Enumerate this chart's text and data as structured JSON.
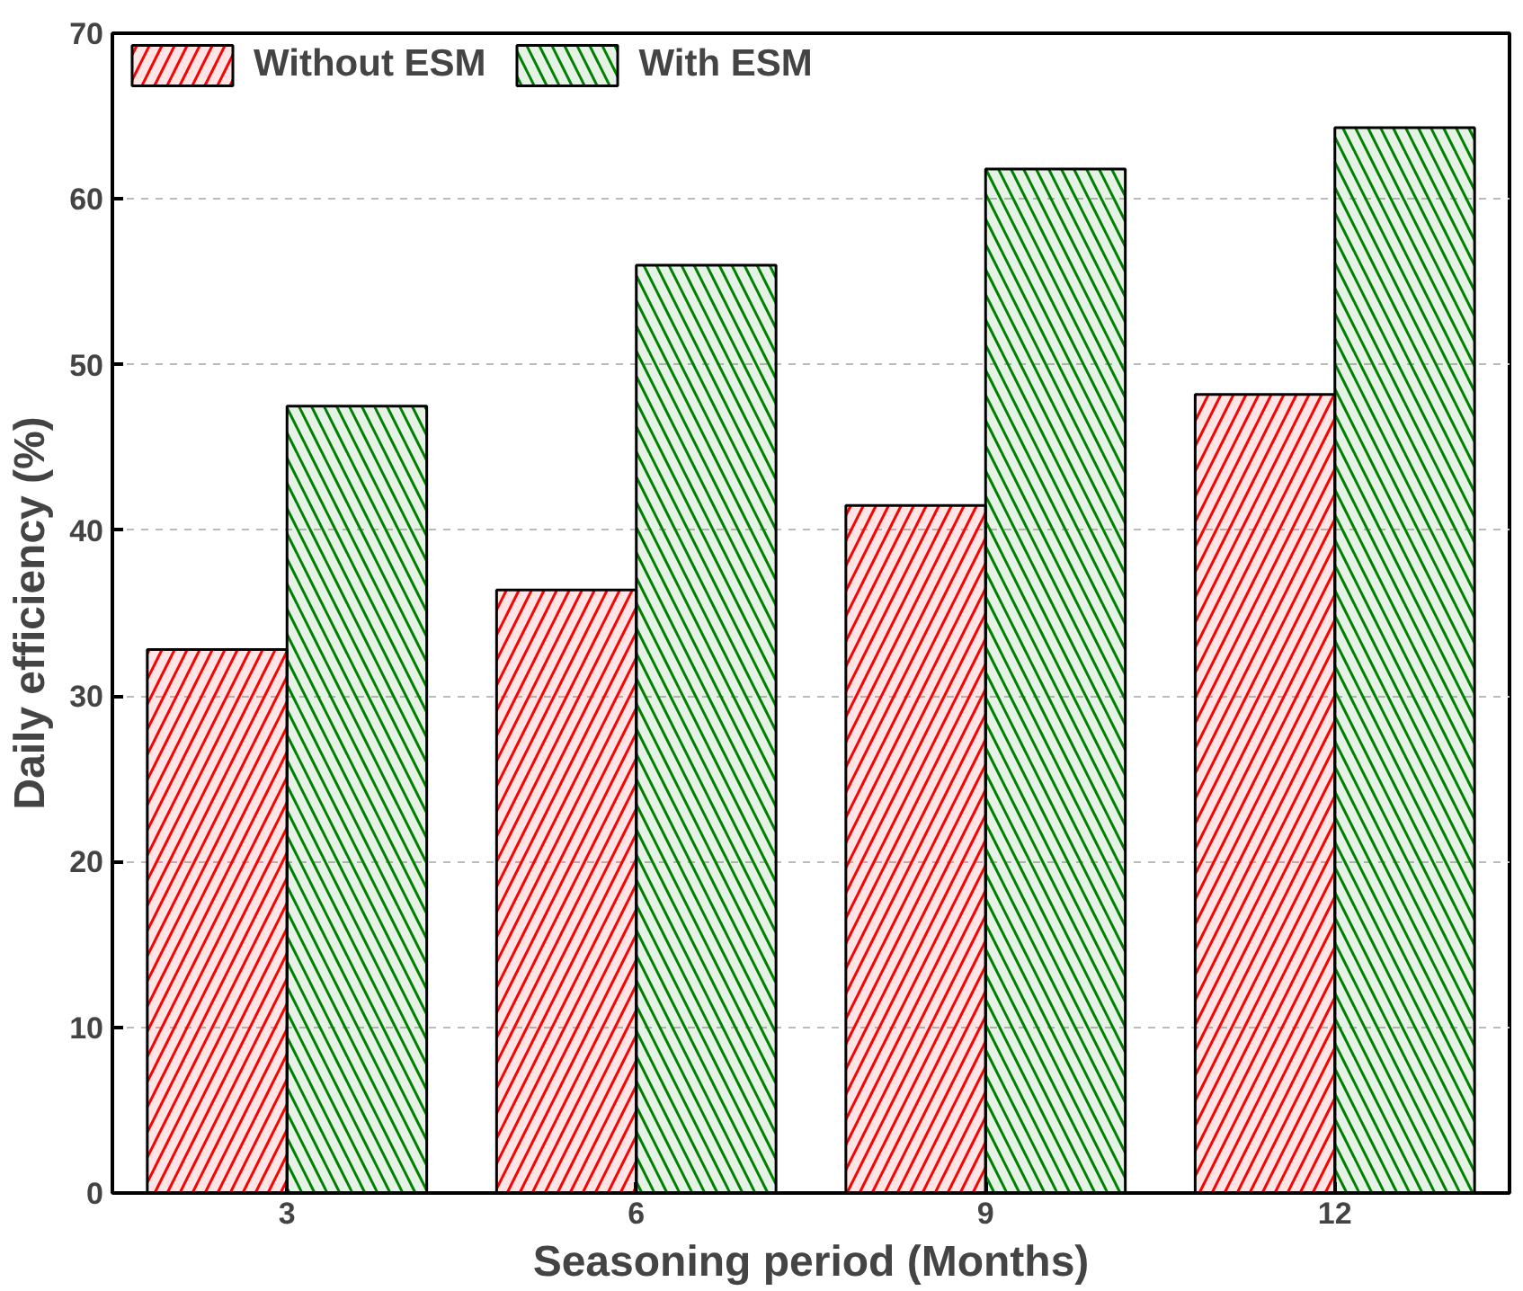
{
  "chart_data": {
    "type": "bar",
    "xlabel": "Seasoning period (Months)",
    "ylabel": "Daily efficiency (%)",
    "categories": [
      "3",
      "6",
      "9",
      "12"
    ],
    "series": [
      {
        "name": "Without ESM",
        "color": "#ff0000",
        "values": [
          32.8,
          36.4,
          41.5,
          48.2
        ]
      },
      {
        "name": "With ESM",
        "color": "#008000",
        "values": [
          47.5,
          56.0,
          61.8,
          64.3
        ]
      }
    ],
    "ylim": [
      0,
      70
    ],
    "yticks": [
      0,
      10,
      20,
      30,
      40,
      50,
      60,
      70
    ],
    "grid": "y",
    "legend": "top left"
  }
}
